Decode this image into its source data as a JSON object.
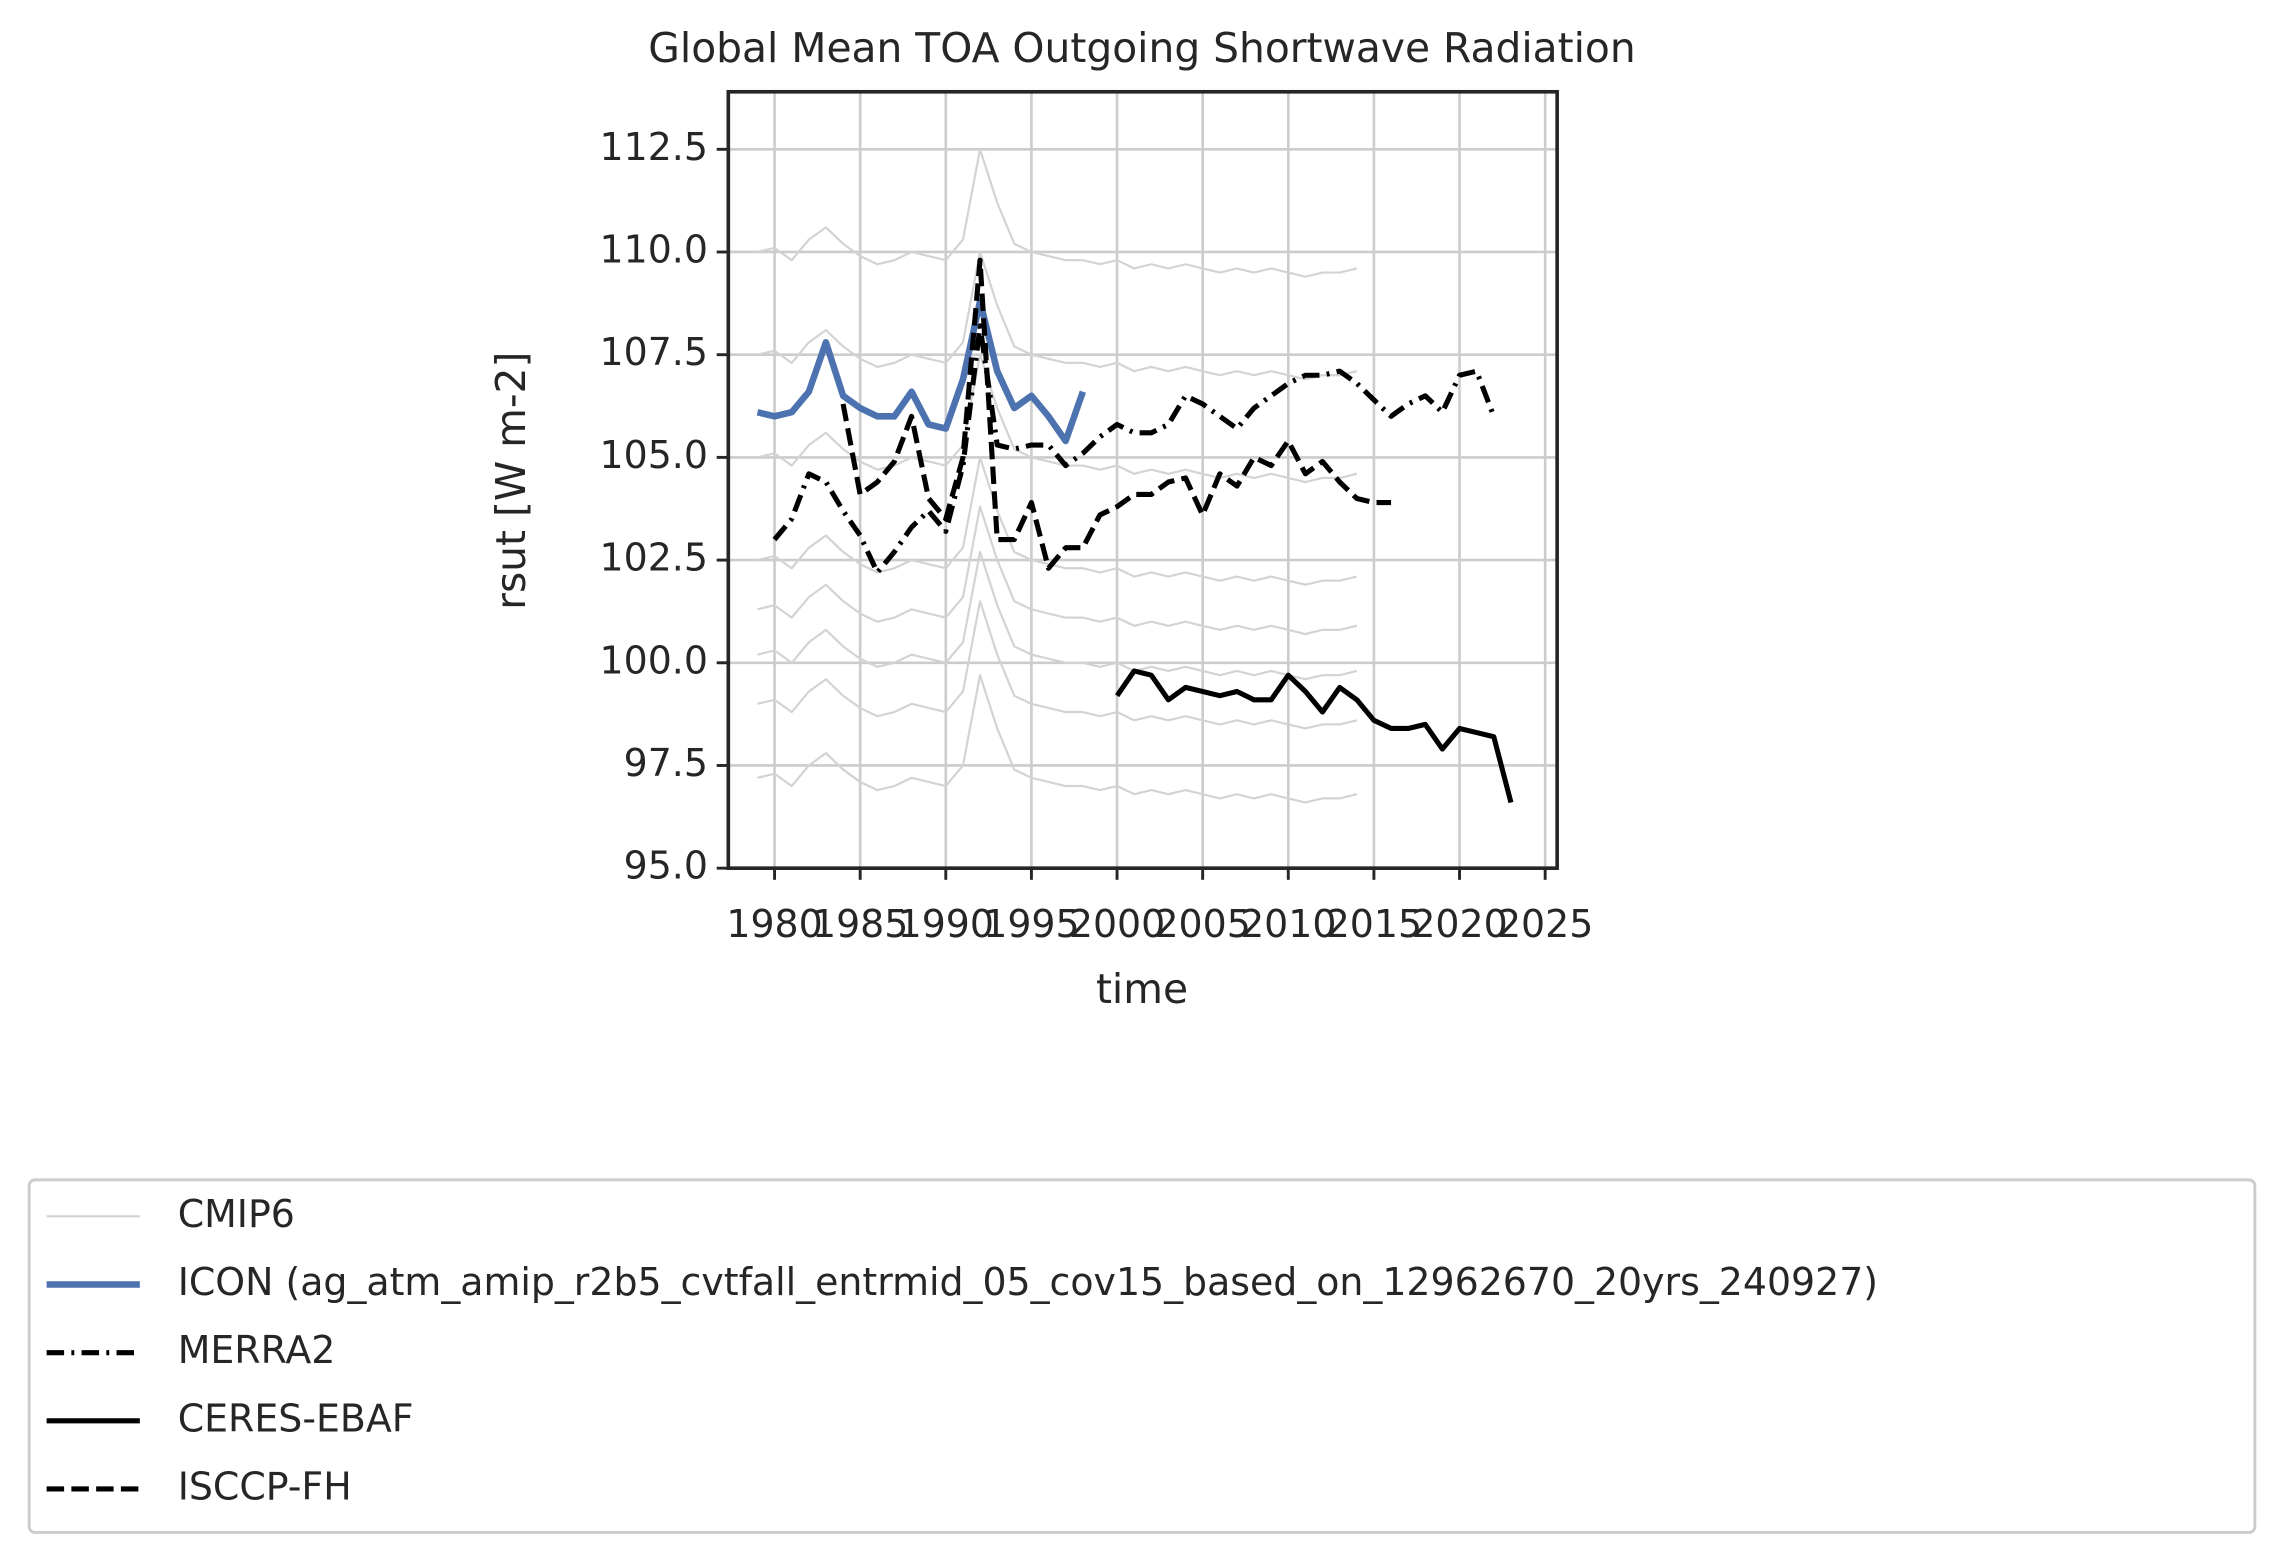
{
  "chart_data": {
    "type": "line",
    "title": "Global Mean TOA Outgoing Shortwave Radiation",
    "x_label": "time",
    "y_label": "rsut [W m-2]",
    "xlim": [
      1977.3,
      2025.7
    ],
    "ylim": [
      95,
      113.9
    ],
    "xticks": [
      1980,
      1985,
      1990,
      1995,
      2000,
      2005,
      2010,
      2015,
      2020,
      2025
    ],
    "yticks": [
      {
        "value": 95,
        "label": "95.0"
      },
      97.5,
      {
        "value": 100,
        "label": "100.0"
      },
      102.5,
      {
        "value": 105,
        "label": "105.0"
      },
      107.5,
      {
        "value": 110,
        "label": "110.0"
      },
      112.5
    ],
    "grid": true,
    "legend": "below",
    "series": [
      {
        "name": "CMIP6",
        "color": "#d3d3d3",
        "width": 1.5,
        "dash": "solid",
        "x": [
          1979,
          1980,
          1981,
          1982,
          1983,
          1984,
          1985,
          1986,
          1987,
          1988,
          1989,
          1990,
          1991,
          1992,
          1993,
          1994,
          1995,
          1996,
          1997,
          1998,
          1999,
          2000,
          2001,
          2002,
          2003,
          2004,
          2005,
          2006,
          2007,
          2008,
          2009,
          2010,
          2011,
          2012,
          2013,
          2014
        ],
        "members": [
          [
            110,
            110.1,
            109.8,
            110.3,
            110.6,
            110.2,
            109.9,
            109.7,
            109.8,
            110,
            109.9,
            109.8,
            110.3,
            112.5,
            111.2,
            110.2,
            110,
            109.9,
            109.8,
            109.8,
            109.7,
            109.8,
            109.6,
            109.7,
            109.6,
            109.7,
            109.6,
            109.5,
            109.6,
            109.5,
            109.6,
            109.5,
            109.4,
            109.5,
            109.5,
            109.6
          ],
          [
            107.5,
            107.6,
            107.3,
            107.8,
            108.1,
            107.7,
            107.4,
            107.2,
            107.3,
            107.5,
            107.4,
            107.3,
            107.8,
            110,
            108.7,
            107.7,
            107.5,
            107.4,
            107.3,
            107.3,
            107.2,
            107.3,
            107.1,
            107.2,
            107.1,
            107.2,
            107.1,
            107,
            107.1,
            107,
            107.1,
            107,
            106.9,
            107,
            107,
            107.1
          ],
          [
            105,
            105.1,
            104.8,
            105.3,
            105.6,
            105.2,
            104.9,
            104.7,
            104.8,
            105,
            104.9,
            104.8,
            105.3,
            107.5,
            106.2,
            105.2,
            105,
            104.9,
            104.8,
            104.8,
            104.7,
            104.8,
            104.6,
            104.7,
            104.6,
            104.7,
            104.6,
            104.5,
            104.6,
            104.5,
            104.6,
            104.5,
            104.4,
            104.5,
            104.5,
            104.6
          ],
          [
            102.5,
            102.6,
            102.3,
            102.8,
            103.1,
            102.7,
            102.4,
            102.2,
            102.3,
            102.5,
            102.4,
            102.3,
            102.8,
            105,
            103.7,
            102.7,
            102.5,
            102.4,
            102.3,
            102.3,
            102.2,
            102.3,
            102.1,
            102.2,
            102.1,
            102.2,
            102.1,
            102,
            102.1,
            102,
            102.1,
            102,
            101.9,
            102,
            102,
            102.1
          ],
          [
            101.3,
            101.4,
            101.1,
            101.6,
            101.9,
            101.5,
            101.2,
            101,
            101.1,
            101.3,
            101.2,
            101.1,
            101.6,
            103.8,
            102.5,
            101.5,
            101.3,
            101.2,
            101.1,
            101.1,
            101,
            101.1,
            100.9,
            101,
            100.9,
            101,
            100.9,
            100.8,
            100.9,
            100.8,
            100.9,
            100.8,
            100.7,
            100.8,
            100.8,
            100.9
          ],
          [
            100.2,
            100.3,
            100,
            100.5,
            100.8,
            100.4,
            100.1,
            99.9,
            100,
            100.2,
            100.1,
            100,
            100.5,
            102.7,
            101.4,
            100.4,
            100.2,
            100.1,
            100,
            100,
            99.9,
            100,
            99.8,
            99.9,
            99.8,
            99.9,
            99.8,
            99.7,
            99.8,
            99.7,
            99.8,
            99.7,
            99.6,
            99.7,
            99.7,
            99.8
          ],
          [
            99,
            99.1,
            98.8,
            99.3,
            99.6,
            99.2,
            98.9,
            98.7,
            98.8,
            99,
            98.9,
            98.8,
            99.3,
            101.5,
            100.2,
            99.2,
            99,
            98.9,
            98.8,
            98.8,
            98.7,
            98.8,
            98.6,
            98.7,
            98.6,
            98.7,
            98.6,
            98.5,
            98.6,
            98.5,
            98.6,
            98.5,
            98.4,
            98.5,
            98.5,
            98.6
          ],
          [
            97.2,
            97.3,
            97,
            97.5,
            97.8,
            97.4,
            97.1,
            96.9,
            97,
            97.2,
            97.1,
            97,
            97.5,
            99.7,
            98.4,
            97.4,
            97.2,
            97.1,
            97,
            97,
            96.9,
            97,
            96.8,
            96.9,
            96.8,
            96.9,
            96.8,
            96.7,
            96.8,
            96.7,
            96.8,
            96.7,
            96.6,
            96.7,
            96.7,
            96.8
          ]
        ]
      },
      {
        "name": "ICON (ag_atm_amip_r2b5_cvtfall_entrmid_05_cov15_based_on_12962670_20yrs_240927)",
        "color": "#4c72b0",
        "width": 4.5,
        "dash": "solid",
        "x": [
          1979,
          1980,
          1981,
          1982,
          1983,
          1984,
          1985,
          1986,
          1987,
          1988,
          1989,
          1990,
          1991,
          1992,
          1993,
          1994,
          1995,
          1996,
          1997,
          1998
        ],
        "values": [
          106.1,
          106.0,
          106.1,
          106.6,
          107.8,
          106.5,
          106.2,
          106.0,
          106.0,
          106.6,
          105.8,
          105.7,
          106.9,
          108.8,
          107.1,
          106.2,
          106.5,
          106.0,
          105.4,
          106.6
        ]
      },
      {
        "name": "MERRA2",
        "color": "#000000",
        "width": 3.5,
        "dash": "dashdot",
        "x": [
          1980,
          1981,
          1982,
          1983,
          1984,
          1985,
          1986,
          1987,
          1988,
          1989,
          1990,
          1991,
          1992,
          1993,
          1994,
          1995,
          1996,
          1997,
          1998,
          1999,
          2000,
          2001,
          2002,
          2003,
          2004,
          2005,
          2006,
          2007,
          2008,
          2009,
          2010,
          2011,
          2012,
          2013,
          2014,
          2015,
          2016,
          2017,
          2018,
          2019,
          2020,
          2021,
          2022
        ],
        "values": [
          103.0,
          103.5,
          104.6,
          104.4,
          103.7,
          103.1,
          102.2,
          102.7,
          103.3,
          103.7,
          103.2,
          104.8,
          108.2,
          105.3,
          105.2,
          105.3,
          105.3,
          104.8,
          105.1,
          105.5,
          105.8,
          105.6,
          105.6,
          105.8,
          106.5,
          106.3,
          106.0,
          105.7,
          106.2,
          106.5,
          106.8,
          107.0,
          107.0,
          107.1,
          106.8,
          106.4,
          106.0,
          106.3,
          106.5,
          106.1,
          107.0,
          107.1,
          106.0
        ]
      },
      {
        "name": "CERES-EBAF",
        "color": "#000000",
        "width": 3.5,
        "dash": "solid",
        "x": [
          2000,
          2001,
          2002,
          2003,
          2004,
          2005,
          2006,
          2007,
          2008,
          2009,
          2010,
          2011,
          2012,
          2013,
          2014,
          2015,
          2016,
          2017,
          2018,
          2019,
          2020,
          2021,
          2022,
          2023
        ],
        "values": [
          99.2,
          99.8,
          99.7,
          99.1,
          99.4,
          99.3,
          99.2,
          99.3,
          99.1,
          99.1,
          99.7,
          99.3,
          98.8,
          99.4,
          99.1,
          98.6,
          98.4,
          98.4,
          98.5,
          97.9,
          98.4,
          98.3,
          98.2,
          96.6
        ]
      },
      {
        "name": "ISCCP-FH",
        "color": "#000000",
        "width": 3.5,
        "dash": "dashed",
        "x": [
          1984,
          1985,
          1986,
          1987,
          1988,
          1989,
          1990,
          1991,
          1992,
          1993,
          1994,
          1995,
          1996,
          1997,
          1998,
          1999,
          2000,
          2001,
          2002,
          2003,
          2004,
          2005,
          2006,
          2007,
          2008,
          2009,
          2010,
          2011,
          2012,
          2013,
          2014,
          2015,
          2016
        ],
        "values": [
          106.3,
          104.1,
          104.4,
          104.9,
          106.0,
          104.0,
          103.5,
          105.0,
          109.8,
          103.0,
          103.0,
          103.9,
          102.3,
          102.8,
          102.8,
          103.6,
          103.8,
          104.1,
          104.1,
          104.4,
          104.5,
          103.6,
          104.6,
          104.3,
          105.0,
          104.8,
          105.4,
          104.6,
          104.9,
          104.4,
          104.0,
          103.9,
          103.9
        ]
      }
    ]
  }
}
